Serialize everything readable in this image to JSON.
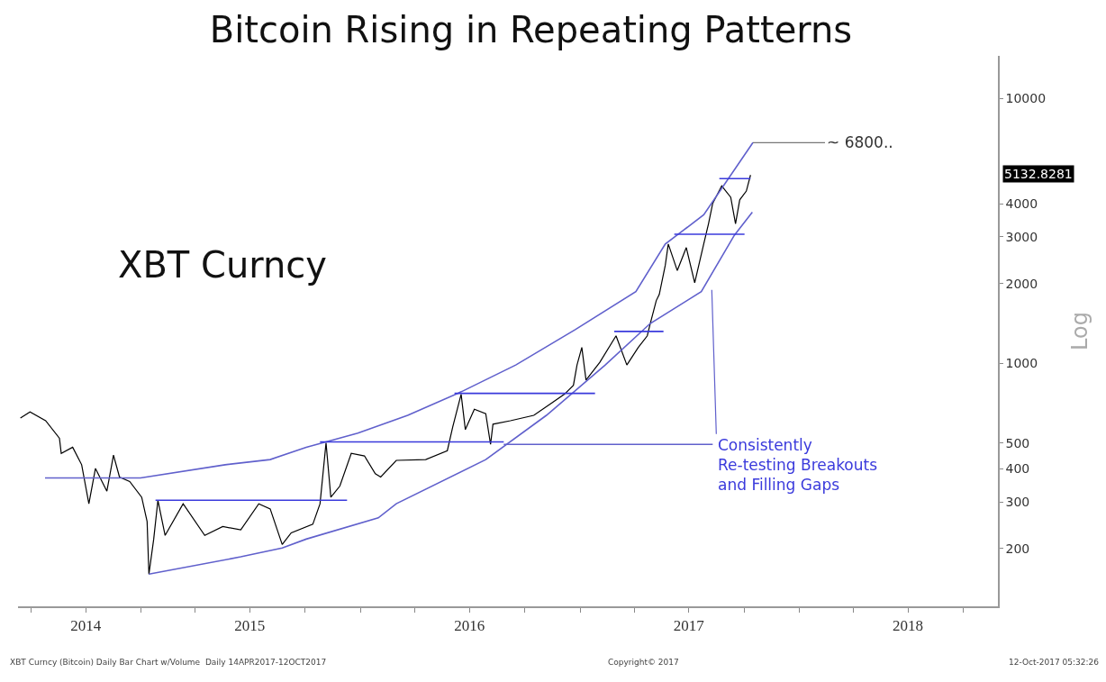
{
  "chart_data": {
    "type": "line",
    "title": "Bitcoin Rising in Repeating Patterns",
    "ylabel": "Log",
    "log": "y",
    "marker": "none",
    "line_style": "solid",
    "xlim": [
      "2014-06-10",
      "2018-11-28"
    ],
    "ylim": [
      121,
      14450
    ],
    "yticks": [
      200,
      300,
      400,
      500,
      1000,
      2000,
      3000,
      4000,
      10000
    ],
    "xticks": [
      {
        "value": "2014-07-01",
        "label": null
      },
      {
        "value": "2014-10-01",
        "label": "2014"
      },
      {
        "value": "2015-01-01",
        "label": null
      },
      {
        "value": "2015-04-01",
        "label": null
      },
      {
        "value": "2015-07-01",
        "label": "2015"
      },
      {
        "value": "2015-10-01",
        "label": null
      },
      {
        "value": "2016-01-01",
        "label": null
      },
      {
        "value": "2016-04-01",
        "label": null
      },
      {
        "value": "2016-07-01",
        "label": "2016"
      },
      {
        "value": "2016-10-01",
        "label": null
      },
      {
        "value": "2017-01-01",
        "label": null
      },
      {
        "value": "2017-04-01",
        "label": null
      },
      {
        "value": "2017-07-01",
        "label": "2017"
      },
      {
        "value": "2017-10-01",
        "label": null
      },
      {
        "value": "2018-01-01",
        "label": null
      },
      {
        "value": "2018-04-01",
        "label": null
      },
      {
        "value": "2018-07-01",
        "label": "2018"
      },
      {
        "value": "2018-10-01",
        "label": null
      }
    ],
    "series": [
      {
        "color": "#000000",
        "x": [
          "2014-06-14",
          "2014-06-30",
          "2014-07-26",
          "2014-08-18",
          "2014-08-21",
          "2014-09-09",
          "2014-09-24",
          "2014-10-06",
          "2014-10-17",
          "2014-11-05",
          "2014-11-16",
          "2014-11-26",
          "2014-12-13",
          "2015-01-02",
          "2015-01-11",
          "2015-01-14",
          "2015-01-22",
          "2015-01-29",
          "2015-02-10",
          "2015-03-12",
          "2015-04-17",
          "2015-05-17",
          "2015-06-16",
          "2015-07-16",
          "2015-08-04",
          "2015-08-24",
          "2015-09-08",
          "2015-10-14",
          "2015-10-26",
          "2015-11-05",
          "2015-11-13",
          "2015-11-28",
          "2015-12-17",
          "2016-01-08",
          "2016-01-26",
          "2016-02-04",
          "2016-03-01",
          "2016-04-19",
          "2016-05-25",
          "2016-06-03",
          "2016-06-17",
          "2016-06-24",
          "2016-07-09",
          "2016-07-28",
          "2016-08-05",
          "2016-08-09",
          "2016-09-07",
          "2016-10-16",
          "2016-11-15",
          "2016-12-06",
          "2016-12-21",
          "2016-12-27",
          "2017-01-04",
          "2017-01-11",
          "2017-02-03",
          "2017-03-02",
          "2017-03-20",
          "2017-04-08",
          "2017-04-23",
          "2017-04-28",
          "2017-05-08",
          "2017-05-13",
          "2017-05-23",
          "2017-05-28",
          "2017-06-12",
          "2017-06-27",
          "2017-07-11",
          "2017-07-26",
          "2017-08-03",
          "2017-08-10",
          "2017-08-25",
          "2017-09-09",
          "2017-09-17",
          "2017-09-24",
          "2017-10-05",
          "2017-10-12"
        ],
        "values": [
          621,
          655,
          607,
          521,
          457,
          482,
          414,
          295,
          401,
          329,
          450,
          372,
          358,
          312,
          253,
          160,
          217,
          304,
          224,
          295,
          224,
          242,
          235,
          295,
          282,
          207,
          229,
          247,
          295,
          501,
          312,
          344,
          457,
          447,
          383,
          372,
          430,
          433,
          468,
          575,
          764,
          562,
          671,
          645,
          494,
          589,
          607,
          636,
          708,
          764,
          826,
          985,
          1148,
          864,
          1008,
          1269,
          985,
          1148,
          1269,
          1413,
          1724,
          1819,
          2343,
          2818,
          2237,
          2732,
          2011,
          2818,
          3362,
          4012,
          4671,
          4228,
          3362,
          4136,
          4463,
          5132.8281
        ]
      },
      {
        "color": "#6060cc",
        "x": [
          "2014-07-25",
          "2014-12-31",
          "2015-05-21",
          "2015-08-04",
          "2015-10-03",
          "2015-12-28",
          "2016-03-20",
          "2016-06-18",
          "2016-09-16",
          "2016-12-24",
          "2017-04-04",
          "2017-05-23",
          "2017-07-26",
          "2017-10-16"
        ],
        "values": [
          369,
          369,
          414,
          433,
          482,
          545,
          636,
          782,
          985,
          1339,
          1862,
          2818,
          3630,
          6800
        ]
      },
      {
        "color": "#6060cc",
        "x": [
          "2015-01-14",
          "2015-06-16",
          "2015-08-24",
          "2015-10-03",
          "2016-01-31",
          "2016-03-01",
          "2016-07-28",
          "2016-11-06",
          "2017-02-12",
          "2017-04-28",
          "2017-07-22",
          "2017-09-15",
          "2017-10-15"
        ],
        "values": [
          160,
          186,
          201,
          217,
          261,
          295,
          433,
          636,
          985,
          1413,
          1862,
          3040,
          3715
        ]
      },
      {
        "color": "#6060cc",
        "x": [
          "2016-08-27",
          "2017-08-10"
        ],
        "values": [
          494,
          494
        ]
      },
      {
        "color": "#3a3adc",
        "x": [
          "2015-01-25",
          "2015-12-10"
        ],
        "values": [
          304,
          304
        ]
      },
      {
        "color": "#3a3adc",
        "x": [
          "2015-10-26",
          "2016-08-27"
        ],
        "values": [
          505,
          505
        ]
      },
      {
        "color": "#3a3adc",
        "x": [
          "2016-06-06",
          "2017-01-26"
        ],
        "values": [
          770,
          770
        ]
      },
      {
        "color": "#3a3adc",
        "x": [
          "2017-02-27",
          "2017-05-20"
        ],
        "values": [
          1318,
          1318
        ]
      },
      {
        "color": "#3a3adc",
        "x": [
          "2017-06-07",
          "2017-10-02"
        ],
        "values": [
          3066,
          3066
        ]
      },
      {
        "color": "#3a3adc",
        "x": [
          "2017-08-21",
          "2017-10-12"
        ],
        "values": [
          4972,
          4972
        ]
      }
    ],
    "annotations": [
      "XBT Curncy",
      "5132.8281",
      "Consistently\nRe-testing Breakouts\nand Filling Gaps",
      "XBT Curncy (Bitcoin) Daily Bar Chart w/Volume  Daily 14APR2017-12OCT2017",
      "Copyright© 2017",
      "12-Oct-2017 05:32:26",
      {
        "text": "~ 6800..",
        "x": "2017-10-16",
        "y": 6800
      }
    ]
  }
}
